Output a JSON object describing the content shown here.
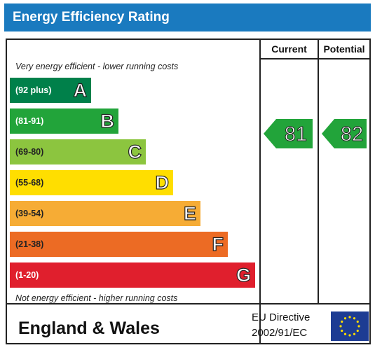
{
  "title": "Energy Efficiency Rating",
  "columns": {
    "current": "Current",
    "potential": "Potential"
  },
  "top_caption": "Very energy efficient - lower running costs",
  "bottom_caption": "Not energy efficient - higher running costs",
  "footer": {
    "region": "England & Wales",
    "directive_line1": "EU Directive",
    "directive_line2": "2002/91/EC",
    "flag_icon": "eu-flag-icon"
  },
  "chart_data": {
    "type": "bar",
    "categories": [
      "A",
      "B",
      "C",
      "D",
      "E",
      "F",
      "G"
    ],
    "bands": [
      {
        "letter": "A",
        "range": "(92 plus)",
        "color": "#00804a",
        "text_color": "#ffffff"
      },
      {
        "letter": "B",
        "range": "(81-91)",
        "color": "#22a43a",
        "text_color": "#ffffff"
      },
      {
        "letter": "C",
        "range": "(69-80)",
        "color": "#8cc53f",
        "text_color": "#222222"
      },
      {
        "letter": "D",
        "range": "(55-68)",
        "color": "#ffde00",
        "text_color": "#222222"
      },
      {
        "letter": "E",
        "range": "(39-54)",
        "color": "#f6ac35",
        "text_color": "#222222"
      },
      {
        "letter": "F",
        "range": "(21-38)",
        "color": "#ec6b24",
        "text_color": "#222222"
      },
      {
        "letter": "G",
        "range": "(1-20)",
        "color": "#e01f2d",
        "text_color": "#ffffff"
      }
    ],
    "current": {
      "value": 81,
      "band": "B",
      "color": "#22a43a"
    },
    "potential": {
      "value": 82,
      "band": "B",
      "color": "#22a43a"
    }
  }
}
